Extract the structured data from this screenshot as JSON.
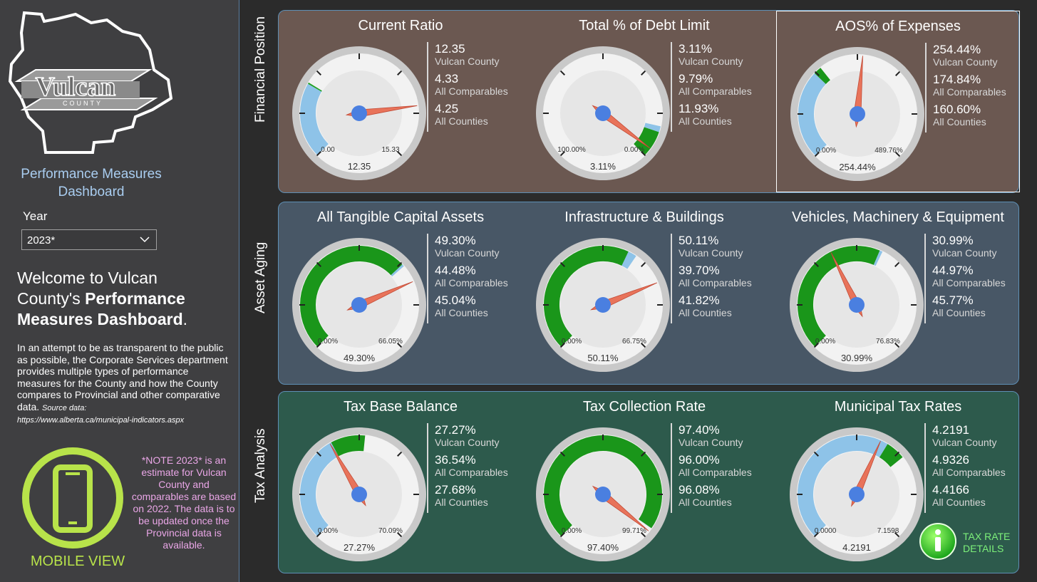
{
  "sidebar": {
    "logo_text": "Vulcan",
    "logo_subtext": "COUNTY",
    "title_line1": "Performance Measures",
    "title_line2": "Dashboard",
    "year_label": "Year",
    "year_value": "2023*",
    "welcome_line1": "Welcome to Vulcan",
    "welcome_line2": "County's ",
    "welcome_bold1": "Performance",
    "welcome_bold2": "Measures Dashboard",
    "welcome_end": ".",
    "intro": "In an attempt to be as transparent to the public as possible, the Corporate Services department provides multiple types of performance measures for the County and how the County compares to Provincial and other comparative data.",
    "source_label": "Source data:",
    "source_url": "https://www.alberta.ca/municipal-indicators.aspx",
    "mobile_label": "MOBILE VIEW",
    "note": "*NOTE 2023* is an estimate for Vulcan County and comparables are based on 2022.  The data is to be updated once the Provincial data is available.",
    "accent_color": "#b8e34a",
    "note_color": "#e9a6e6"
  },
  "rows": [
    {
      "label": "Financial Position",
      "cards": [
        {
          "title": "Current Ratio",
          "min_label": "0.00",
          "max_label": "15.33",
          "value_label": "12.35",
          "min": 0,
          "max": 15.33,
          "bands": [
            {
              "from": 0,
              "to": 4.25,
              "color": "#8ec3e8"
            },
            {
              "from": 4.25,
              "to": 4.33,
              "color": "#20a020"
            }
          ],
          "needle": 12.35,
          "stats": [
            {
              "v": "12.35",
              "l": "Vulcan County"
            },
            {
              "v": "4.33",
              "l": "All Comparables"
            },
            {
              "v": "4.25",
              "l": "All Counties"
            }
          ]
        },
        {
          "title": "Total % of Debt Limit",
          "min_label": "100.00%",
          "max_label": "0.00%",
          "value_label": "3.11%",
          "min": 0,
          "max": 100,
          "reversed": true,
          "bands": [
            {
              "from": 0,
              "to": 9.79,
              "color": "#1a961a"
            },
            {
              "from": 9.79,
              "to": 11.93,
              "color": "#8ec3e8"
            }
          ],
          "needle": 3.11,
          "stats": [
            {
              "v": "3.11%",
              "l": "Vulcan County"
            },
            {
              "v": "9.79%",
              "l": "All Comparables"
            },
            {
              "v": "11.93%",
              "l": "All Counties"
            }
          ]
        },
        {
          "title": "AOS% of Expenses",
          "min_label": "0.00%",
          "max_label": "489.76%",
          "value_label": "254.44%",
          "min": 0,
          "max": 489.76,
          "selected": true,
          "bands": [
            {
              "from": 0,
              "to": 160.6,
              "color": "#8ec3e8"
            },
            {
              "from": 160.6,
              "to": 174.84,
              "color": "#1a961a"
            }
          ],
          "needle": 254.44,
          "stats": [
            {
              "v": "254.44%",
              "l": "Vulcan County"
            },
            {
              "v": "174.84%",
              "l": "All Comparables"
            },
            {
              "v": "160.60%",
              "l": "All Counties"
            }
          ]
        }
      ]
    },
    {
      "label": "Asset Aging",
      "cards": [
        {
          "title": "All Tangible Capital Assets",
          "min_label": "0.00%",
          "max_label": "66.05%",
          "value_label": "49.30%",
          "min": 0,
          "max": 66.05,
          "bands": [
            {
              "from": 0,
              "to": 44.48,
              "color": "#1a961a"
            },
            {
              "from": 44.48,
              "to": 45.04,
              "color": "#8ec3e8"
            }
          ],
          "needle": 49.3,
          "stats": [
            {
              "v": "49.30%",
              "l": "Vulcan County"
            },
            {
              "v": "44.48%",
              "l": "All Comparables"
            },
            {
              "v": "45.04%",
              "l": "All Counties"
            }
          ]
        },
        {
          "title": "Infrastructure & Buildings",
          "min_label": "0.00%",
          "max_label": "66.75%",
          "value_label": "50.11%",
          "min": 0,
          "max": 66.75,
          "bands": [
            {
              "from": 0,
              "to": 39.7,
              "color": "#1a961a"
            },
            {
              "from": 39.7,
              "to": 41.82,
              "color": "#8ec3e8"
            }
          ],
          "needle": 50.11,
          "stats": [
            {
              "v": "50.11%",
              "l": "Vulcan County"
            },
            {
              "v": "39.70%",
              "l": "All Comparables"
            },
            {
              "v": "41.82%",
              "l": "All Counties"
            }
          ]
        },
        {
          "title": "Vehicles, Machinery & Equipment",
          "min_label": "0.00%",
          "max_label": "76.83%",
          "value_label": "30.99%",
          "min": 0,
          "max": 76.83,
          "bands": [
            {
              "from": 0,
              "to": 44.97,
              "color": "#1a961a"
            },
            {
              "from": 44.97,
              "to": 45.77,
              "color": "#8ec3e8"
            }
          ],
          "needle": 30.99,
          "stats": [
            {
              "v": "30.99%",
              "l": "Vulcan County"
            },
            {
              "v": "44.97%",
              "l": "All Comparables"
            },
            {
              "v": "45.77%",
              "l": "All Counties"
            }
          ]
        }
      ]
    },
    {
      "label": "Tax Analysis",
      "cards": [
        {
          "title": "Tax Base Balance",
          "min_label": "0.00%",
          "max_label": "70.09%",
          "value_label": "27.27%",
          "min": 0,
          "max": 70.09,
          "bands": [
            {
              "from": 0,
              "to": 27.68,
              "color": "#8ec3e8"
            },
            {
              "from": 27.68,
              "to": 36.54,
              "color": "#1a961a"
            }
          ],
          "needle": 27.27,
          "stats": [
            {
              "v": "27.27%",
              "l": "Vulcan County"
            },
            {
              "v": "36.54%",
              "l": "All Comparables"
            },
            {
              "v": "27.68%",
              "l": "All Counties"
            }
          ]
        },
        {
          "title": "Tax Collection Rate",
          "min_label": "0.00%",
          "max_label": "99.71%",
          "value_label": "97.40%",
          "min": 0,
          "max": 99.71,
          "bands": [
            {
              "from": 0,
              "to": 96.0,
              "color": "#1a961a"
            },
            {
              "from": 96.0,
              "to": 96.08,
              "color": "#8ec3e8"
            }
          ],
          "needle": 97.4,
          "stats": [
            {
              "v": "97.40%",
              "l": "Vulcan County"
            },
            {
              "v": "96.00%",
              "l": "All Comparables"
            },
            {
              "v": "96.08%",
              "l": "All Counties"
            }
          ]
        },
        {
          "title": "Municipal Tax Rates",
          "min_label": "0.0000",
          "max_label": "7.1598",
          "value_label": "4.2191",
          "min": 0,
          "max": 7.1598,
          "bands": [
            {
              "from": 0,
              "to": 4.4166,
              "color": "#8ec3e8"
            },
            {
              "from": 4.4166,
              "to": 4.9326,
              "color": "#1a961a"
            }
          ],
          "needle": 4.2191,
          "stats": [
            {
              "v": "4.2191",
              "l": "Vulcan County"
            },
            {
              "v": "4.9326",
              "l": "All Comparables"
            },
            {
              "v": "4.4166",
              "l": "All Counties"
            }
          ]
        }
      ]
    }
  ],
  "tax_rate_details": {
    "line1": "TAX RATE",
    "line2": "DETAILS",
    "icon": "info-icon",
    "color": "#7df07a"
  },
  "colors": {
    "needle": "#e8735a",
    "hub": "#4a7fe0",
    "green_band": "#1a961a",
    "blue_band": "#8ec3e8"
  }
}
